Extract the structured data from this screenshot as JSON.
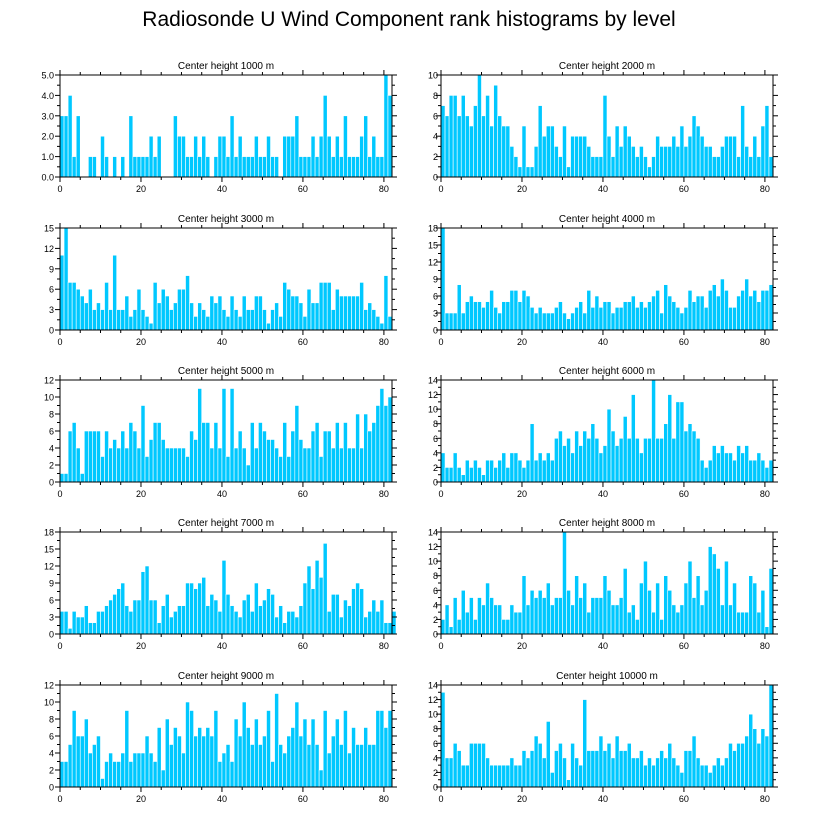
{
  "title": "Radiosonde U Wind Component rank histograms by level",
  "colors": {
    "bar": "#00c8ff",
    "bar_edge": "#ffffff",
    "axis": "#000000"
  },
  "chart_data": [
    {
      "type": "bar",
      "title": "Center height 1000 m",
      "xlim": [
        0,
        82
      ],
      "xticks": [
        0,
        20,
        40,
        60,
        80
      ],
      "ylim": [
        0,
        5
      ],
      "yticks": [
        "0.0",
        "1.0",
        "2.0",
        "3.0",
        "4.0",
        "5.0"
      ],
      "ytick_values": [
        0,
        1,
        2,
        3,
        4,
        5
      ],
      "values": [
        3,
        3,
        4,
        1,
        3,
        0,
        0,
        1,
        1,
        0,
        2,
        1,
        0,
        1,
        0,
        1,
        0,
        3,
        1,
        1,
        1,
        1,
        2,
        1,
        2,
        0,
        0,
        0,
        3,
        2,
        2,
        1,
        1,
        2,
        1,
        2,
        1,
        0,
        1,
        2,
        2,
        1,
        3,
        1,
        2,
        1,
        1,
        1,
        2,
        1,
        1,
        2,
        1,
        1,
        0,
        2,
        2,
        2,
        3,
        1,
        1,
        1,
        2,
        1,
        2,
        4,
        2,
        1,
        2,
        1,
        3,
        1,
        1,
        1,
        2,
        3,
        1,
        2,
        1,
        1,
        5,
        4
      ]
    },
    {
      "type": "bar",
      "title": "Center height 2000 m",
      "xlim": [
        0,
        82
      ],
      "xticks": [
        0,
        20,
        40,
        60,
        80
      ],
      "ylim": [
        0,
        10
      ],
      "yticks": [
        "0",
        "2",
        "4",
        "6",
        "8",
        "10"
      ],
      "ytick_values": [
        0,
        2,
        4,
        6,
        8,
        10
      ],
      "values": [
        7,
        6,
        8,
        8,
        6,
        8,
        6,
        5,
        7,
        10,
        6,
        8,
        5,
        9,
        6,
        5,
        5,
        3,
        2,
        1,
        5,
        1,
        1,
        3,
        7,
        4,
        5,
        5,
        3,
        2,
        5,
        1,
        4,
        4,
        4,
        4,
        3,
        2,
        2,
        2,
        8,
        4,
        2,
        5,
        3,
        5,
        4,
        3,
        2,
        3,
        2,
        1,
        2,
        4,
        3,
        3,
        3,
        4,
        3,
        5,
        3,
        4,
        6,
        5,
        4,
        3,
        3,
        2,
        2,
        3,
        4,
        4,
        4,
        2,
        7,
        3,
        2,
        4,
        2,
        5,
        7,
        2
      ]
    },
    {
      "type": "bar",
      "title": "Center height 3000 m",
      "xlim": [
        0,
        82
      ],
      "xticks": [
        0,
        20,
        40,
        60,
        80
      ],
      "ylim": [
        0,
        15
      ],
      "yticks": [
        "0",
        "3",
        "6",
        "9",
        "12",
        "15"
      ],
      "ytick_values": [
        0,
        3,
        6,
        9,
        12,
        15
      ],
      "values": [
        11,
        15,
        7,
        7,
        6,
        5,
        4,
        6,
        3,
        4,
        3,
        7,
        3,
        11,
        3,
        3,
        5,
        2,
        3,
        6,
        3,
        2,
        1,
        7,
        4,
        6,
        5,
        3,
        4,
        6,
        6,
        8,
        4,
        2,
        4,
        3,
        2,
        5,
        4,
        5,
        3,
        2,
        5,
        3,
        2,
        5,
        3,
        3,
        5,
        5,
        3,
        1,
        3,
        4,
        2,
        7,
        6,
        5,
        5,
        4,
        2,
        6,
        4,
        4,
        7,
        7,
        7,
        3,
        6,
        5,
        5,
        5,
        5,
        5,
        7,
        3,
        4,
        3,
        2,
        1,
        8,
        2
      ]
    },
    {
      "type": "bar",
      "title": "Center height 4000 m",
      "xlim": [
        0,
        82
      ],
      "xticks": [
        0,
        20,
        40,
        60,
        80
      ],
      "ylim": [
        0,
        18
      ],
      "yticks": [
        "0",
        "3",
        "6",
        "9",
        "12",
        "15",
        "18"
      ],
      "ytick_values": [
        0,
        3,
        6,
        9,
        12,
        15,
        18
      ],
      "values": [
        18,
        3,
        3,
        3,
        8,
        3,
        5,
        6,
        5,
        5,
        4,
        5,
        7,
        4,
        3,
        5,
        5,
        7,
        7,
        5,
        7,
        6,
        4,
        3,
        4,
        3,
        3,
        3,
        4,
        5,
        3,
        2,
        3,
        4,
        5,
        3,
        7,
        4,
        6,
        4,
        5,
        5,
        3,
        4,
        4,
        5,
        5,
        6,
        4,
        5,
        4,
        5,
        6,
        7,
        3,
        8,
        6,
        5,
        4,
        3,
        4,
        7,
        5,
        6,
        6,
        4,
        7,
        8,
        6,
        9,
        7,
        4,
        4,
        6,
        7,
        9,
        6,
        7,
        5,
        7,
        7,
        8
      ]
    },
    {
      "type": "bar",
      "title": "Center height 5000 m",
      "xlim": [
        0,
        82
      ],
      "xticks": [
        0,
        20,
        40,
        60,
        80
      ],
      "ylim": [
        0,
        12
      ],
      "yticks": [
        "0",
        "2",
        "4",
        "6",
        "8",
        "10",
        "12"
      ],
      "ytick_values": [
        0,
        2,
        4,
        6,
        8,
        10,
        12
      ],
      "values": [
        1,
        1,
        6,
        7,
        4,
        1,
        6,
        6,
        6,
        6,
        3,
        6,
        4,
        5,
        4,
        6,
        4,
        7,
        6,
        4,
        9,
        3,
        5,
        7,
        7,
        5,
        4,
        4,
        4,
        4,
        4,
        3,
        6,
        5,
        11,
        7,
        7,
        4,
        7,
        4,
        11,
        3,
        11,
        4,
        6,
        4,
        2,
        7,
        4,
        7,
        6,
        5,
        5,
        4,
        3,
        7,
        3,
        6,
        9,
        5,
        4,
        4,
        6,
        7,
        3,
        6,
        6,
        4,
        7,
        4,
        7,
        4,
        4,
        8,
        4,
        8,
        6,
        7,
        9,
        11,
        9,
        10
      ]
    },
    {
      "type": "bar",
      "title": "Center height 6000 m",
      "xlim": [
        0,
        82
      ],
      "xticks": [
        0,
        20,
        40,
        60,
        80
      ],
      "ylim": [
        0,
        14
      ],
      "yticks": [
        "0",
        "2",
        "4",
        "6",
        "8",
        "10",
        "12",
        "14"
      ],
      "ytick_values": [
        0,
        2,
        4,
        6,
        8,
        10,
        12,
        14
      ],
      "values": [
        4,
        2,
        2,
        4,
        2,
        1,
        3,
        2,
        3,
        2,
        1,
        3,
        3,
        2,
        3,
        4,
        2,
        4,
        4,
        3,
        2,
        3,
        8,
        3,
        4,
        3,
        4,
        3,
        6,
        7,
        5,
        6,
        4,
        7,
        5,
        7,
        6,
        8,
        6,
        4,
        5,
        10,
        7,
        5,
        6,
        9,
        6,
        12,
        6,
        4,
        6,
        6,
        14,
        6,
        6,
        8,
        12,
        6,
        11,
        11,
        7,
        8,
        7,
        6,
        3,
        2,
        3,
        5,
        4,
        5,
        4,
        4,
        3,
        5,
        4,
        5,
        3,
        3,
        4,
        3,
        2,
        3
      ]
    },
    {
      "type": "bar",
      "title": "Center height 7000 m",
      "xlim": [
        0,
        82
      ],
      "xticks": [
        0,
        20,
        40,
        60,
        80
      ],
      "ylim": [
        0,
        18
      ],
      "yticks": [
        "0",
        "3",
        "6",
        "9",
        "12",
        "15",
        "18"
      ],
      "ytick_values": [
        0,
        3,
        6,
        9,
        12,
        15,
        18
      ],
      "values": [
        4,
        4,
        1,
        4,
        3,
        3,
        5,
        2,
        2,
        4,
        4,
        5,
        6,
        7,
        8,
        9,
        5,
        4,
        6,
        6,
        11,
        12,
        6,
        6,
        2,
        5,
        7,
        3,
        4,
        5,
        5,
        9,
        9,
        8,
        9,
        10,
        5,
        7,
        6,
        4,
        13,
        7,
        5,
        4,
        3,
        6,
        7,
        4,
        9,
        5,
        6,
        8,
        7,
        3,
        5,
        2,
        4,
        4,
        3,
        5,
        9,
        12,
        8,
        13,
        10,
        16,
        4,
        7,
        7,
        3,
        6,
        5,
        8,
        9,
        8,
        3,
        4,
        6,
        4,
        6,
        2,
        2,
        4
      ]
    },
    {
      "type": "bar",
      "title": "Center height 8000 m",
      "xlim": [
        0,
        82
      ],
      "xticks": [
        0,
        20,
        40,
        60,
        80
      ],
      "ylim": [
        0,
        14
      ],
      "yticks": [
        "0",
        "2",
        "4",
        "6",
        "8",
        "10",
        "12",
        "14"
      ],
      "ytick_values": [
        0,
        2,
        4,
        6,
        8,
        10,
        12,
        14
      ],
      "values": [
        2,
        4,
        1,
        5,
        2,
        6,
        3,
        5,
        2,
        5,
        4,
        7,
        5,
        4,
        4,
        2,
        2,
        4,
        3,
        3,
        8,
        4,
        6,
        5,
        6,
        5,
        7,
        4,
        5,
        5,
        14,
        6,
        4,
        8,
        5,
        7,
        3,
        5,
        5,
        5,
        8,
        6,
        4,
        4,
        5,
        9,
        3,
        4,
        2,
        7,
        10,
        6,
        3,
        7,
        2,
        8,
        6,
        4,
        3,
        4,
        7,
        10,
        5,
        8,
        4,
        6,
        12,
        11,
        9,
        4,
        10,
        4,
        7,
        3,
        3,
        3,
        8,
        7,
        3,
        6,
        1,
        9
      ]
    },
    {
      "type": "bar",
      "title": "Center height 9000 m",
      "xlim": [
        0,
        82
      ],
      "xticks": [
        0,
        20,
        40,
        60,
        80
      ],
      "ylim": [
        0,
        12
      ],
      "yticks": [
        "0",
        "2",
        "4",
        "6",
        "8",
        "10",
        "12"
      ],
      "ytick_values": [
        0,
        2,
        4,
        6,
        8,
        10,
        12
      ],
      "values": [
        3,
        3,
        5,
        9,
        6,
        6,
        8,
        4,
        5,
        6,
        1,
        3,
        4,
        3,
        3,
        4,
        9,
        3,
        4,
        4,
        4,
        6,
        4,
        3,
        7,
        2,
        8,
        5,
        7,
        6,
        4,
        10,
        9,
        6,
        7,
        6,
        7,
        6,
        9,
        3,
        4,
        5,
        3,
        8,
        6,
        10,
        7,
        5,
        8,
        5,
        6,
        9,
        3,
        11,
        5,
        4,
        6,
        7,
        10,
        6,
        8,
        5,
        8,
        5,
        2,
        9,
        4,
        6,
        8,
        5,
        9,
        4,
        7,
        5,
        5,
        7,
        5,
        5,
        9,
        9,
        7,
        9
      ]
    },
    {
      "type": "bar",
      "title": "Center height 10000 m",
      "xlim": [
        0,
        82
      ],
      "xticks": [
        0,
        20,
        40,
        60,
        80
      ],
      "ylim": [
        0,
        14
      ],
      "yticks": [
        "0",
        "2",
        "4",
        "6",
        "8",
        "10",
        "12",
        "14"
      ],
      "ytick_values": [
        0,
        2,
        4,
        6,
        8,
        10,
        12,
        14
      ],
      "values": [
        13,
        4,
        4,
        6,
        5,
        3,
        3,
        6,
        6,
        6,
        6,
        4,
        3,
        3,
        3,
        3,
        3,
        4,
        3,
        3,
        5,
        4,
        5,
        7,
        6,
        4,
        9,
        2,
        5,
        6,
        4,
        1,
        6,
        4,
        3,
        12,
        5,
        5,
        5,
        7,
        5,
        6,
        4,
        7,
        5,
        5,
        6,
        4,
        4,
        5,
        3,
        4,
        3,
        4,
        5,
        4,
        6,
        4,
        3,
        2,
        5,
        5,
        7,
        4,
        3,
        3,
        2,
        3,
        4,
        3,
        4,
        6,
        5,
        6,
        6,
        7,
        10,
        8,
        6,
        8,
        7,
        14
      ]
    }
  ]
}
